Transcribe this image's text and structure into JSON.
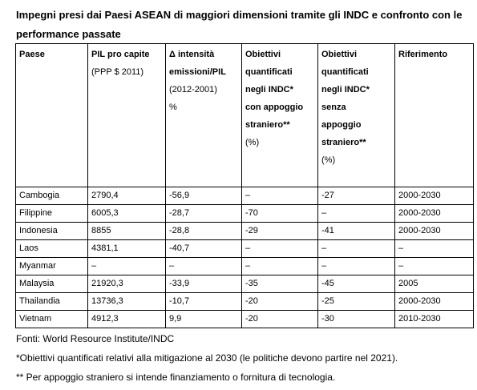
{
  "title": "Impegni presi dai Paesi ASEAN di maggiori dimensioni tramite gli INDC e confronto con le performance passate",
  "columns": [
    {
      "bold": [
        "Paese"
      ],
      "normal": []
    },
    {
      "bold": [
        "PIL pro capite"
      ],
      "normal": [
        "(PPP $ 2011)"
      ]
    },
    {
      "bold": [
        "Δ intensità",
        "emissioni/PIL"
      ],
      "normal": [
        "(2012-2001)",
        "%"
      ]
    },
    {
      "bold": [
        "Obiettivi",
        "quantificati",
        "negli INDC*",
        "con appoggio",
        "straniero**"
      ],
      "normal": [
        "(%)"
      ]
    },
    {
      "bold": [
        "Obiettivi",
        "quantificati",
        "negli INDC*",
        "senza",
        "appoggio",
        "straniero**"
      ],
      "normal": [
        "(%)"
      ]
    },
    {
      "bold": [
        "Riferimento"
      ],
      "normal": []
    }
  ],
  "rows": [
    [
      "Cambogia",
      "2790,4",
      "-56,9",
      "–",
      "-27",
      "2000-2030"
    ],
    [
      "Filippine",
      "6005,3",
      "-28,7",
      "-70",
      "–",
      "2000-2030"
    ],
    [
      "Indonesia",
      "8855",
      "-28,8",
      "-29",
      "-41",
      "2000-2030"
    ],
    [
      "Laos",
      "4381,1",
      "-40,7",
      "–",
      "–",
      "–"
    ],
    [
      "Myanmar",
      "–",
      "–",
      "–",
      "–",
      "–"
    ],
    [
      "Malaysia",
      "21920,3",
      "-33,9",
      "-35",
      "-45",
      "2005"
    ],
    [
      "Thailandia",
      "13736,3",
      "-10,7",
      "-20",
      "-25",
      "2000-2030"
    ],
    [
      "Vietnam",
      "4912,3",
      "9,9",
      "-20",
      "-30",
      "2010-2030"
    ]
  ],
  "notes": [
    "Fonti: World Resource Institute/INDC",
    "*Obiettivi quantificati relativi alla mitigazione al 2030 (le politiche devono partire nel 2021).",
    "** Per appoggio straniero si intende finanziamento o fornitura di tecnologia."
  ]
}
